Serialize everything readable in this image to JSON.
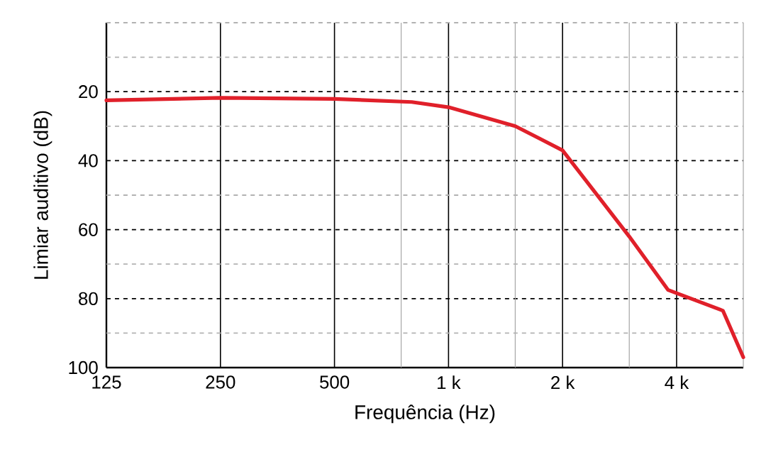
{
  "chart_data": {
    "type": "line",
    "xlabel": "Frequência (Hz)",
    "ylabel": "Limiar auditivo (dB)",
    "log": "x",
    "grid": true,
    "marker": "none",
    "line_style": "solid",
    "xlim": [
      125,
      6000
    ],
    "ylim": [
      100,
      0
    ],
    "xticks": [
      125,
      250,
      500,
      {
        "value": 750,
        "label": null
      },
      {
        "value": 1000,
        "label": "1 k"
      },
      {
        "value": 1500,
        "label": null
      },
      {
        "value": 2000,
        "label": "2 k"
      },
      {
        "value": 3000,
        "label": null
      },
      {
        "value": 4000,
        "label": "4 k"
      },
      {
        "value": 6000,
        "label": null
      }
    ],
    "yticks": [
      {
        "value": 0,
        "label": null
      },
      {
        "value": 10,
        "label": null
      },
      20,
      {
        "value": 30,
        "label": null
      },
      40,
      {
        "value": 50,
        "label": null
      },
      60,
      {
        "value": 70,
        "label": null
      },
      80,
      {
        "value": 90,
        "label": null
      },
      100
    ],
    "series": [
      {
        "color": "#e0202a",
        "x": [
          125,
          250,
          500,
          800,
          1000,
          1500,
          2000,
          3000,
          3800,
          5300,
          6000
        ],
        "values": [
          22.5,
          21.8,
          22.1,
          23,
          24.5,
          30,
          37,
          62,
          77.5,
          83.5,
          97
        ]
      }
    ]
  }
}
